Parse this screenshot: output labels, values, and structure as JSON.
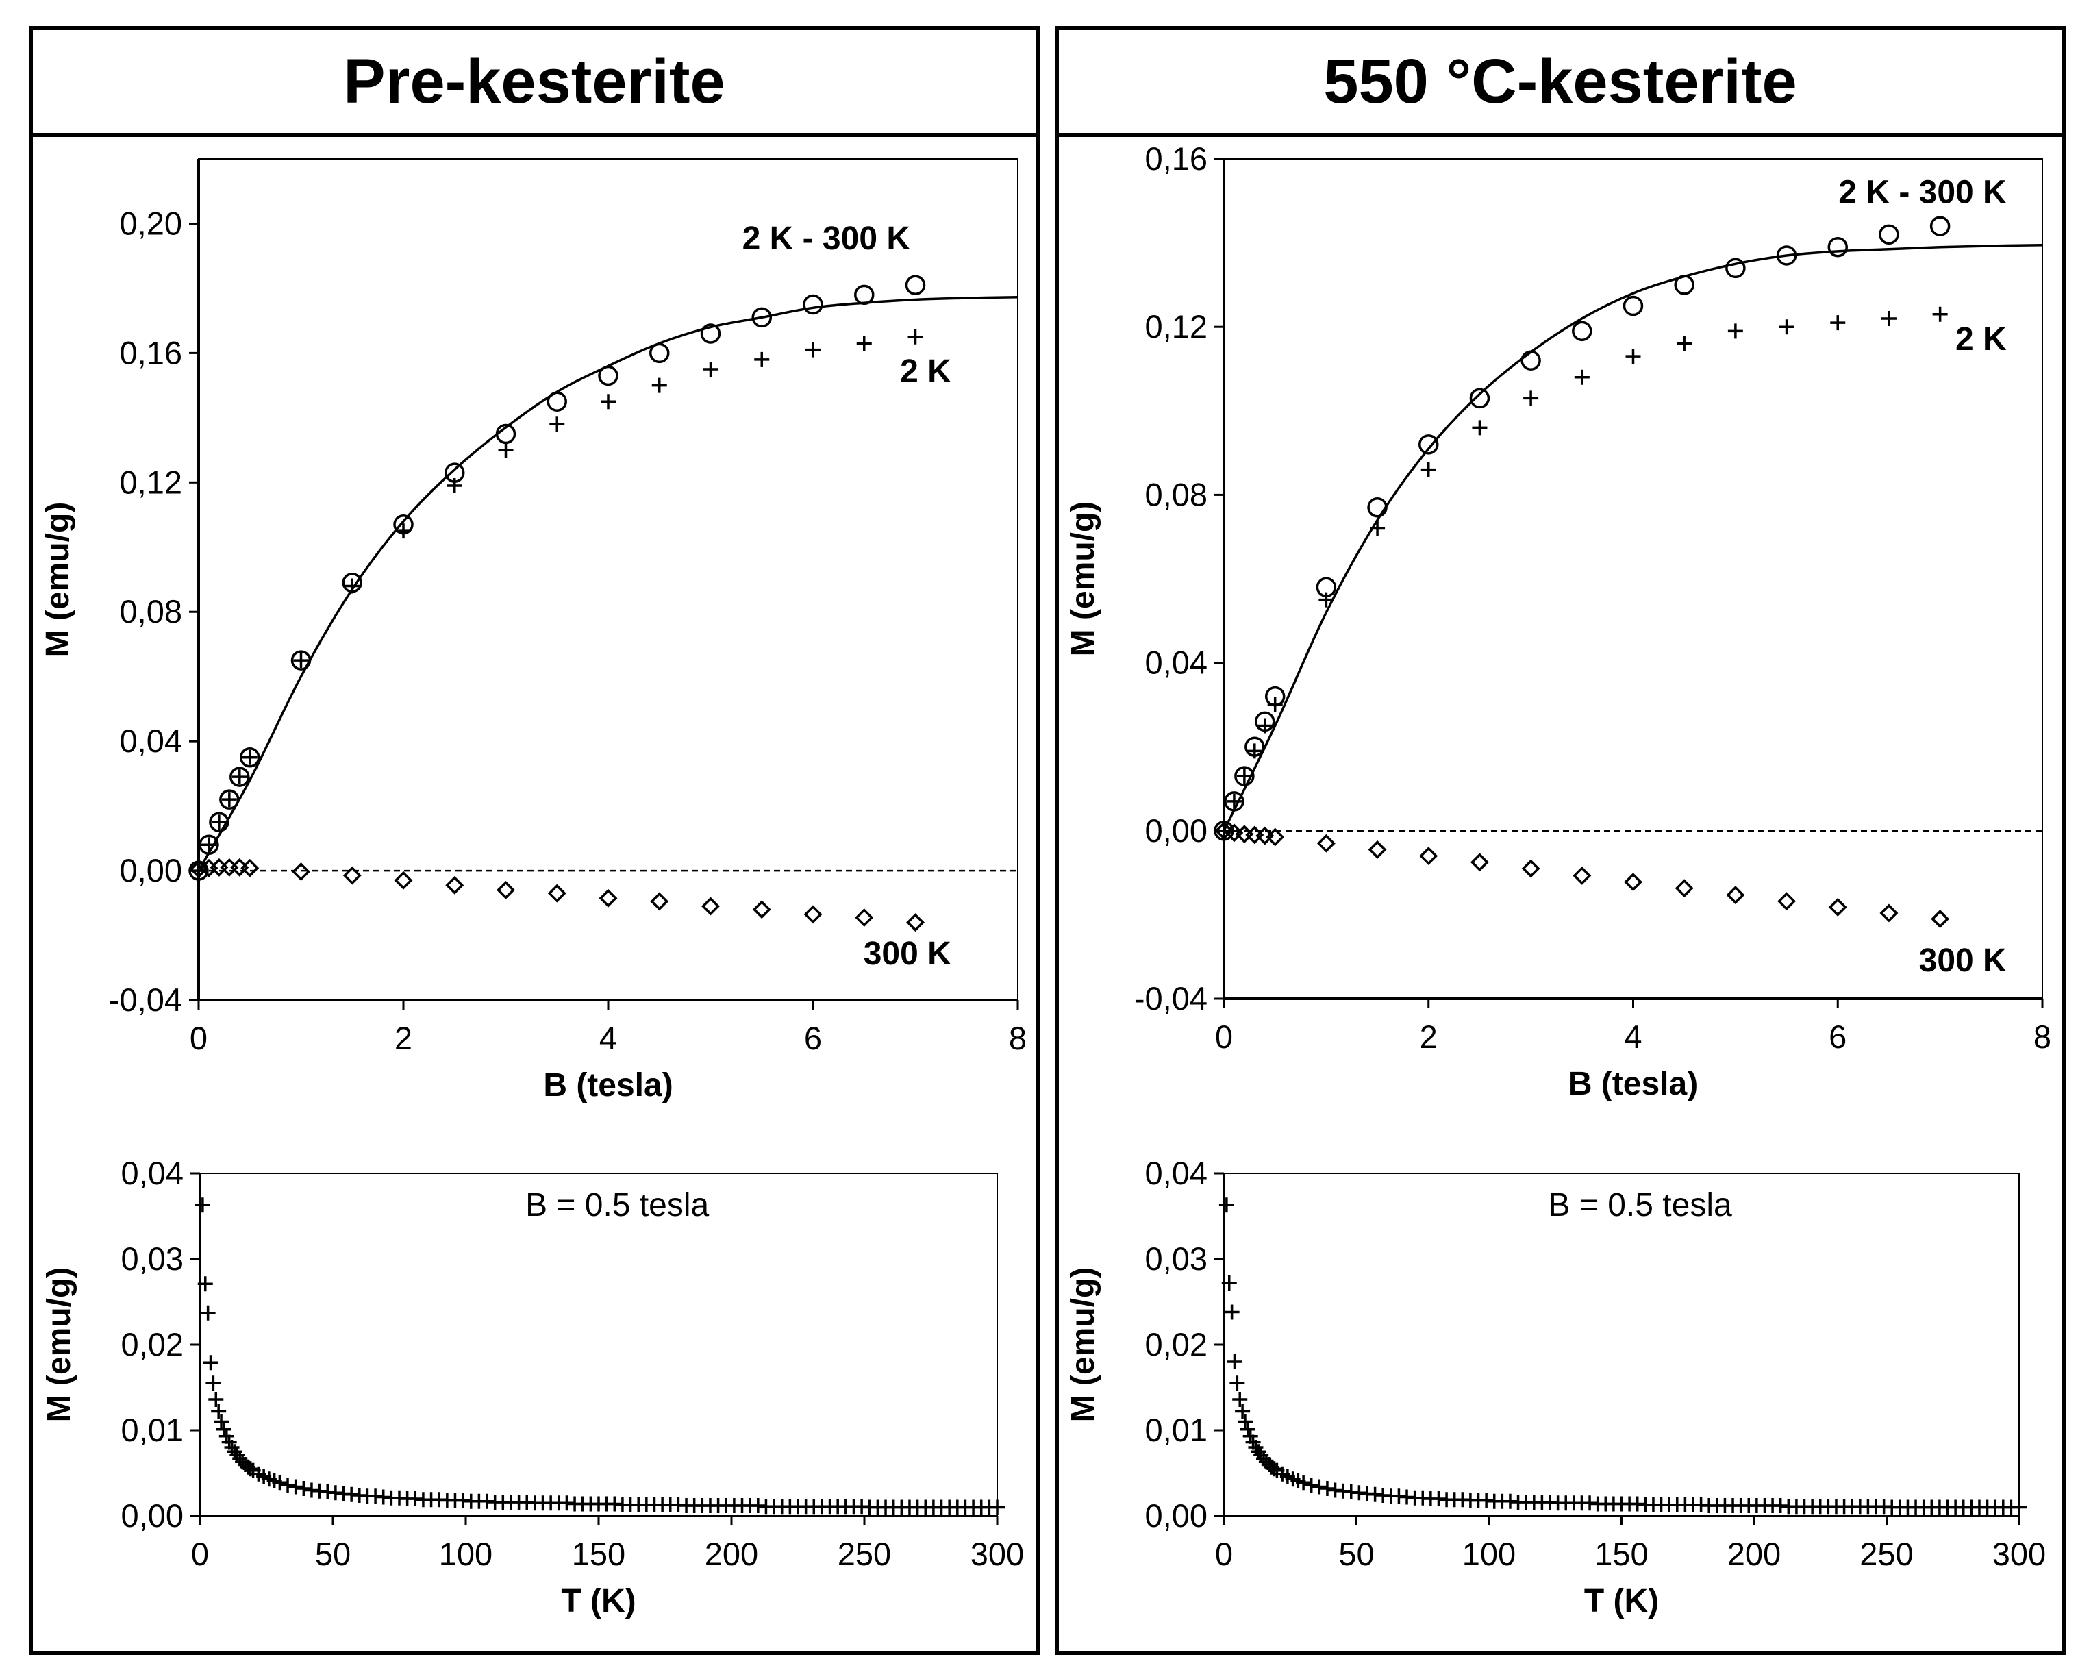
{
  "panels": [
    {
      "title": "Pre-kesterite"
    },
    {
      "title": "550 °C-kesterite"
    }
  ],
  "chart_data": [
    {
      "type": "scatter",
      "panel": "Pre-kesterite",
      "xlabel": "B (tesla)",
      "ylabel": "M (emu/g)",
      "xlim": [
        0,
        8
      ],
      "ylim": [
        -0.04,
        0.22
      ],
      "xticks": [
        0,
        2,
        4,
        6,
        8
      ],
      "xtick_labels": [
        "0",
        "2",
        "4",
        "6",
        "8"
      ],
      "yticks": [
        -0.04,
        0.0,
        0.04,
        0.08,
        0.12,
        0.16,
        0.2
      ],
      "ytick_labels": [
        "-0,04",
        "0,00",
        "0,04",
        "0,08",
        "0,12",
        "0,16",
        "0,20"
      ],
      "zero_line": "dashed",
      "series": [
        {
          "name": "2 K - 300 K",
          "marker": "circle",
          "x": [
            0,
            0.1,
            0.2,
            0.3,
            0.4,
            0.5,
            1,
            1.5,
            2,
            2.5,
            3,
            3.5,
            4,
            4.5,
            5,
            5.5,
            6,
            6.5,
            7
          ],
          "y": [
            0,
            0.008,
            0.015,
            0.022,
            0.029,
            0.035,
            0.065,
            0.089,
            0.107,
            0.123,
            0.135,
            0.145,
            0.153,
            0.16,
            0.166,
            0.171,
            0.175,
            0.178,
            0.181
          ]
        },
        {
          "name": "2 K",
          "marker": "plus",
          "x": [
            0,
            0.1,
            0.2,
            0.3,
            0.4,
            0.5,
            1,
            1.5,
            2,
            2.5,
            3,
            3.5,
            4,
            4.5,
            5,
            5.5,
            6,
            6.5,
            7
          ],
          "y": [
            0,
            0.008,
            0.015,
            0.022,
            0.029,
            0.035,
            0.065,
            0.088,
            0.105,
            0.119,
            0.13,
            0.138,
            0.145,
            0.15,
            0.155,
            0.158,
            0.161,
            0.163,
            0.165
          ]
        },
        {
          "name": "300 K",
          "marker": "diamond",
          "x": [
            0,
            0.1,
            0.2,
            0.3,
            0.4,
            0.5,
            1,
            1.5,
            2,
            2.5,
            3,
            3.5,
            4,
            4.5,
            5,
            5.5,
            6,
            6.5,
            7
          ],
          "y": [
            0.0005,
            0.0008,
            0.001,
            0.001,
            0.001,
            0.0008,
            -0.0003,
            -0.0015,
            -0.003,
            -0.0045,
            -0.006,
            -0.007,
            -0.0085,
            -0.0095,
            -0.011,
            -0.012,
            -0.0135,
            -0.0145,
            -0.016
          ]
        },
        {
          "name": "fit",
          "marker": "line",
          "x": [
            0,
            0.5,
            1,
            1.5,
            2,
            2.5,
            3,
            3.5,
            4,
            4.5,
            5,
            5.5,
            6,
            6.5,
            7,
            7.5,
            8
          ],
          "y": [
            0,
            0.028,
            0.06,
            0.087,
            0.108,
            0.124,
            0.137,
            0.148,
            0.156,
            0.163,
            0.168,
            0.171,
            0.174,
            0.1755,
            0.1765,
            0.177,
            0.1773
          ]
        }
      ],
      "annotations": [
        {
          "text": "2 K - 300 K",
          "x": 6.95,
          "y": 0.192
        },
        {
          "text": "2 K",
          "x": 7.35,
          "y": 0.151
        },
        {
          "text": "300 K",
          "x": 7.35,
          "y": -0.029
        }
      ]
    },
    {
      "type": "scatter",
      "panel": "Pre-kesterite",
      "xlabel": "T (K)",
      "ylabel": "M (emu/g)",
      "xlim": [
        0,
        300
      ],
      "ylim": [
        0,
        0.04
      ],
      "xticks": [
        0,
        50,
        100,
        150,
        200,
        250,
        300
      ],
      "xtick_labels": [
        "0",
        "50",
        "100",
        "150",
        "200",
        "250",
        "300"
      ],
      "yticks": [
        0.0,
        0.01,
        0.02,
        0.03,
        0.04
      ],
      "ytick_labels": [
        "0,00",
        "0,01",
        "0,02",
        "0,03",
        "0,04"
      ],
      "annotation": "B = 0.5 tesla",
      "series": [
        {
          "name": "M(T) at B = 0.5 tesla",
          "marker": "plus",
          "x": [
            1,
            2,
            3,
            4,
            5,
            6,
            7,
            8,
            9,
            10,
            11,
            12,
            13,
            14,
            15,
            16,
            17,
            18,
            19,
            20,
            22,
            24,
            26,
            28,
            30,
            33,
            36,
            39,
            42,
            45,
            48,
            51,
            54,
            57,
            60,
            63,
            66,
            69,
            72,
            75,
            78,
            81,
            84,
            87,
            90,
            93,
            96,
            99,
            102,
            105,
            108,
            111,
            114,
            117,
            120,
            123,
            126,
            129,
            132,
            135,
            138,
            141,
            144,
            147,
            150,
            153,
            156,
            159,
            162,
            165,
            168,
            171,
            174,
            177,
            180,
            183,
            186,
            189,
            192,
            195,
            198,
            201,
            204,
            207,
            210,
            213,
            216,
            219,
            222,
            225,
            228,
            231,
            234,
            237,
            240,
            243,
            246,
            249,
            252,
            255,
            258,
            261,
            264,
            267,
            270,
            273,
            276,
            279,
            282,
            285,
            288,
            291,
            294,
            297,
            300
          ],
          "y": [
            0.0363,
            0.0271,
            0.0237,
            0.0179,
            0.0155,
            0.0136,
            0.0122,
            0.011,
            0.0101,
            0.0093,
            0.0086,
            0.008,
            0.0075,
            0.0071,
            0.0067,
            0.0063,
            0.006,
            0.0057,
            0.0055,
            0.0053,
            0.0049,
            0.0046,
            0.0043,
            0.0041,
            0.0039,
            0.0036,
            0.0034,
            0.0032,
            0.003,
            0.0029,
            0.0028,
            0.0027,
            0.0026,
            0.0025,
            0.0024,
            0.0023,
            0.0023,
            0.0022,
            0.0021,
            0.0021,
            0.002,
            0.002,
            0.0019,
            0.0019,
            0.0019,
            0.0018,
            0.0018,
            0.0018,
            0.0017,
            0.0017,
            0.0017,
            0.0016,
            0.0016,
            0.0016,
            0.0016,
            0.0016,
            0.0015,
            0.0015,
            0.0015,
            0.0015,
            0.0015,
            0.0014,
            0.0014,
            0.0014,
            0.0014,
            0.0014,
            0.0014,
            0.0013,
            0.0013,
            0.0013,
            0.0013,
            0.0013,
            0.0013,
            0.0013,
            0.0013,
            0.0012,
            0.0012,
            0.0012,
            0.0012,
            0.0012,
            0.0012,
            0.0012,
            0.0012,
            0.0012,
            0.0012,
            0.0011,
            0.0011,
            0.0011,
            0.0011,
            0.0011,
            0.0011,
            0.0011,
            0.0011,
            0.0011,
            0.0011,
            0.0011,
            0.0011,
            0.0011,
            0.001,
            0.001,
            0.001,
            0.001,
            0.001,
            0.001,
            0.001,
            0.001,
            0.001,
            0.001,
            0.001,
            0.001,
            0.001,
            0.001,
            0.001,
            0.001,
            0.001
          ]
        }
      ]
    },
    {
      "type": "scatter",
      "panel": "550 °C-kesterite",
      "xlabel": "B (tesla)",
      "ylabel": "M (emu/g)",
      "xlim": [
        0,
        8
      ],
      "ylim": [
        -0.04,
        0.16
      ],
      "xticks": [
        0,
        2,
        4,
        6,
        8
      ],
      "xtick_labels": [
        "0",
        "2",
        "4",
        "6",
        "8"
      ],
      "yticks": [
        -0.04,
        0.0,
        0.04,
        0.08,
        0.12,
        0.16
      ],
      "ytick_labels": [
        "-0,04",
        "0,00",
        "0,04",
        "0,08",
        "0,12",
        "0,16"
      ],
      "zero_line": "dashed",
      "series": [
        {
          "name": "2 K - 300 K",
          "marker": "circle",
          "x": [
            0,
            0.1,
            0.2,
            0.3,
            0.4,
            0.5,
            1,
            1.5,
            2,
            2.5,
            3,
            3.5,
            4,
            4.5,
            5,
            5.5,
            6,
            6.5,
            7
          ],
          "y": [
            0,
            0.007,
            0.013,
            0.02,
            0.026,
            0.032,
            0.058,
            0.077,
            0.092,
            0.103,
            0.112,
            0.119,
            0.125,
            0.13,
            0.134,
            0.137,
            0.139,
            0.142,
            0.144
          ]
        },
        {
          "name": "2 K",
          "marker": "plus",
          "x": [
            0,
            0.1,
            0.2,
            0.3,
            0.4,
            0.5,
            1,
            1.5,
            2,
            2.5,
            3,
            3.5,
            4,
            4.5,
            5,
            5.5,
            6,
            6.5,
            7
          ],
          "y": [
            0,
            0.007,
            0.013,
            0.019,
            0.025,
            0.03,
            0.055,
            0.072,
            0.086,
            0.096,
            0.103,
            0.108,
            0.113,
            0.116,
            0.119,
            0.12,
            0.121,
            0.122,
            0.123
          ]
        },
        {
          "name": "300 K",
          "marker": "diamond",
          "x": [
            0,
            0.1,
            0.2,
            0.3,
            0.4,
            0.5,
            1,
            1.5,
            2,
            2.5,
            3,
            3.5,
            4,
            4.5,
            5,
            5.5,
            6,
            6.5,
            7
          ],
          "y": [
            0,
            -0.0005,
            -0.0008,
            -0.001,
            -0.0012,
            -0.0015,
            -0.003,
            -0.0045,
            -0.006,
            -0.0075,
            -0.009,
            -0.0107,
            -0.0122,
            -0.0137,
            -0.0153,
            -0.0168,
            -0.0182,
            -0.0196,
            -0.021
          ]
        },
        {
          "name": "fit",
          "marker": "line",
          "x": [
            0,
            0.5,
            1,
            1.5,
            2,
            2.5,
            3,
            3.5,
            4,
            4.5,
            5,
            5.5,
            6,
            6.5,
            7,
            7.5,
            8
          ],
          "y": [
            0,
            0.025,
            0.052,
            0.074,
            0.091,
            0.104,
            0.114,
            0.122,
            0.128,
            0.132,
            0.135,
            0.137,
            0.138,
            0.1385,
            0.139,
            0.1393,
            0.1395
          ]
        }
      ],
      "annotations": [
        {
          "text": "2 K - 300 K",
          "x": 7.65,
          "y": 0.1495
        },
        {
          "text": "2 K",
          "x": 7.65,
          "y": 0.1145
        },
        {
          "text": "300 K",
          "x": 7.65,
          "y": -0.0335
        }
      ]
    },
    {
      "type": "scatter",
      "panel": "550 °C-kesterite",
      "xlabel": "T (K)",
      "ylabel": "M (emu/g)",
      "xlim": [
        0,
        300
      ],
      "ylim": [
        0,
        0.04
      ],
      "xticks": [
        0,
        50,
        100,
        150,
        200,
        250,
        300
      ],
      "xtick_labels": [
        "0",
        "50",
        "100",
        "150",
        "200",
        "250",
        "300"
      ],
      "yticks": [
        0.0,
        0.01,
        0.02,
        0.03,
        0.04
      ],
      "ytick_labels": [
        "0,00",
        "0,01",
        "0,02",
        "0,03",
        "0,04"
      ],
      "annotation": "B = 0.5 tesla",
      "series": [
        {
          "name": "M(T) at B = 0.5 tesla",
          "marker": "plus",
          "x": [
            1,
            2,
            3,
            4,
            5,
            6,
            7,
            8,
            9,
            10,
            11,
            12,
            13,
            14,
            15,
            16,
            17,
            18,
            19,
            20,
            22,
            24,
            26,
            28,
            30,
            33,
            36,
            39,
            42,
            45,
            48,
            51,
            54,
            57,
            60,
            63,
            66,
            69,
            72,
            75,
            78,
            81,
            84,
            87,
            90,
            93,
            96,
            99,
            102,
            105,
            108,
            111,
            114,
            117,
            120,
            123,
            126,
            129,
            132,
            135,
            138,
            141,
            144,
            147,
            150,
            153,
            156,
            159,
            162,
            165,
            168,
            171,
            174,
            177,
            180,
            183,
            186,
            189,
            192,
            195,
            198,
            201,
            204,
            207,
            210,
            213,
            216,
            219,
            222,
            225,
            228,
            231,
            234,
            237,
            240,
            243,
            246,
            249,
            252,
            255,
            258,
            261,
            264,
            267,
            270,
            273,
            276,
            279,
            282,
            285,
            288,
            291,
            294,
            297,
            300
          ],
          "y": [
            0.0363,
            0.0272,
            0.0238,
            0.018,
            0.0155,
            0.0136,
            0.0122,
            0.011,
            0.0101,
            0.0093,
            0.0086,
            0.008,
            0.0075,
            0.0071,
            0.0067,
            0.0063,
            0.006,
            0.0057,
            0.0055,
            0.0053,
            0.0049,
            0.0046,
            0.0043,
            0.0041,
            0.0039,
            0.0036,
            0.0034,
            0.0032,
            0.003,
            0.0029,
            0.0028,
            0.0027,
            0.0026,
            0.0025,
            0.0024,
            0.0023,
            0.0023,
            0.0022,
            0.0021,
            0.0021,
            0.002,
            0.002,
            0.0019,
            0.0019,
            0.0019,
            0.0018,
            0.0018,
            0.0018,
            0.0017,
            0.0017,
            0.0017,
            0.0016,
            0.0016,
            0.0016,
            0.0016,
            0.0016,
            0.0015,
            0.0015,
            0.0015,
            0.0015,
            0.0015,
            0.0014,
            0.0014,
            0.0014,
            0.0014,
            0.0014,
            0.0014,
            0.0013,
            0.0013,
            0.0013,
            0.0013,
            0.0013,
            0.0013,
            0.0013,
            0.0013,
            0.0012,
            0.0012,
            0.0012,
            0.0012,
            0.0012,
            0.0012,
            0.0012,
            0.0012,
            0.0012,
            0.0012,
            0.0011,
            0.0011,
            0.0011,
            0.0011,
            0.0011,
            0.0011,
            0.0011,
            0.0011,
            0.0011,
            0.0011,
            0.0011,
            0.0011,
            0.0011,
            0.001,
            0.001,
            0.001,
            0.001,
            0.001,
            0.001,
            0.001,
            0.001,
            0.001,
            0.001,
            0.001,
            0.001,
            0.001,
            0.001,
            0.001,
            0.001,
            0.001
          ]
        }
      ]
    }
  ]
}
